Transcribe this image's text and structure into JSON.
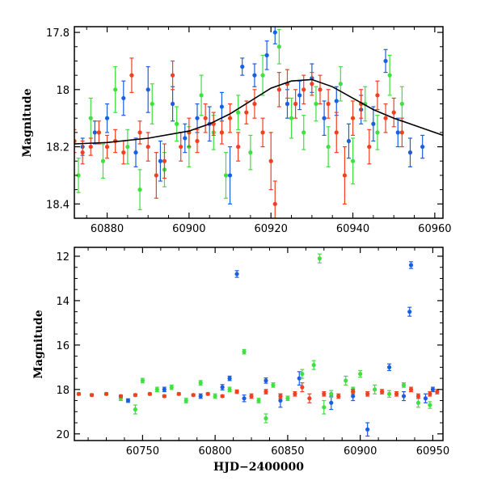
{
  "chart_data": [
    {
      "type": "scatter",
      "panel": "top",
      "title": "",
      "xlabel": "",
      "ylabel": "Magnitude",
      "xlim": [
        60872,
        60962
      ],
      "ylim": [
        18.45,
        17.78
      ],
      "y_inverted": true,
      "x_ticks": [
        60880,
        60900,
        60920,
        60940,
        60960
      ],
      "x_tick_labels": [
        "60880",
        "60900",
        "60920",
        "60940",
        "60960"
      ],
      "y_ticks": [
        17.8,
        18,
        18.2,
        18.4
      ],
      "y_tick_labels": [
        "17.8",
        "18",
        "18.2",
        "18.4"
      ],
      "model_curve": {
        "name": "model",
        "color": "#000000",
        "x": [
          60872,
          60880,
          60890,
          60900,
          60905,
          60910,
          60915,
          60920,
          60925,
          60930,
          60935,
          60940,
          60945,
          60950,
          60955,
          60960,
          60962
        ],
        "y": [
          18.19,
          18.185,
          18.17,
          18.145,
          18.12,
          18.085,
          18.04,
          17.995,
          17.97,
          17.965,
          17.99,
          18.03,
          18.07,
          18.1,
          18.125,
          18.15,
          18.16
        ]
      },
      "series": [
        {
          "name": "blue",
          "color": "#1a5fe0",
          "points": [
            [
              60874,
              18.2,
              0.03
            ],
            [
              60877,
              18.15,
              0.04
            ],
            [
              60880,
              18.1,
              0.05
            ],
            [
              60884,
              18.03,
              0.06
            ],
            [
              60887,
              18.22,
              0.05
            ],
            [
              60890,
              18.0,
              0.08
            ],
            [
              60893,
              18.25,
              0.07
            ],
            [
              60896,
              18.05,
              0.06
            ],
            [
              60899,
              18.17,
              0.05
            ],
            [
              60902,
              18.1,
              0.05
            ],
            [
              60905,
              18.12,
              0.06
            ],
            [
              60908,
              18.06,
              0.05
            ],
            [
              60910,
              18.3,
              0.1
            ],
            [
              60913,
              17.92,
              0.03
            ],
            [
              60916,
              17.95,
              0.04
            ],
            [
              60919,
              17.88,
              0.05
            ],
            [
              60921,
              17.8,
              0.04
            ],
            [
              60924,
              18.05,
              0.05
            ],
            [
              60927,
              18.02,
              0.05
            ],
            [
              60930,
              17.96,
              0.05
            ],
            [
              60933,
              18.1,
              0.06
            ],
            [
              60936,
              18.04,
              0.05
            ],
            [
              60939,
              18.18,
              0.06
            ],
            [
              60942,
              18.07,
              0.05
            ],
            [
              60945,
              18.12,
              0.06
            ],
            [
              60948,
              17.9,
              0.04
            ],
            [
              60951,
              18.15,
              0.05
            ],
            [
              60954,
              18.22,
              0.05
            ],
            [
              60957,
              18.2,
              0.04
            ]
          ]
        },
        {
          "name": "green",
          "color": "#3fe03f",
          "points": [
            [
              60873,
              18.3,
              0.06
            ],
            [
              60876,
              18.1,
              0.07
            ],
            [
              60879,
              18.25,
              0.06
            ],
            [
              60882,
              18.0,
              0.08
            ],
            [
              60885,
              18.2,
              0.06
            ],
            [
              60888,
              18.35,
              0.07
            ],
            [
              60891,
              18.05,
              0.07
            ],
            [
              60894,
              18.28,
              0.06
            ],
            [
              60897,
              18.12,
              0.06
            ],
            [
              60900,
              18.2,
              0.07
            ],
            [
              60903,
              18.02,
              0.07
            ],
            [
              60906,
              18.15,
              0.06
            ],
            [
              60909,
              18.3,
              0.08
            ],
            [
              60912,
              18.08,
              0.06
            ],
            [
              60915,
              18.22,
              0.06
            ],
            [
              60918,
              17.95,
              0.07
            ],
            [
              60922,
              17.85,
              0.06
            ],
            [
              60925,
              18.1,
              0.07
            ],
            [
              60928,
              18.15,
              0.06
            ],
            [
              60931,
              18.05,
              0.06
            ],
            [
              60934,
              18.2,
              0.07
            ],
            [
              60937,
              17.98,
              0.06
            ],
            [
              60940,
              18.25,
              0.08
            ],
            [
              60943,
              18.05,
              0.06
            ],
            [
              60946,
              18.15,
              0.06
            ],
            [
              60949,
              17.95,
              0.07
            ],
            [
              60952,
              18.05,
              0.06
            ]
          ]
        },
        {
          "name": "red",
          "color": "#f04020",
          "points": [
            [
              60872,
              18.18,
              0.04
            ],
            [
              60874,
              18.22,
              0.04
            ],
            [
              60876,
              18.2,
              0.03
            ],
            [
              60878,
              18.15,
              0.04
            ],
            [
              60880,
              18.2,
              0.04
            ],
            [
              60882,
              18.18,
              0.04
            ],
            [
              60884,
              18.22,
              0.04
            ],
            [
              60886,
              17.95,
              0.06
            ],
            [
              60888,
              18.15,
              0.04
            ],
            [
              60890,
              18.2,
              0.05
            ],
            [
              60892,
              18.3,
              0.08
            ],
            [
              60894,
              18.25,
              0.06
            ],
            [
              60896,
              17.95,
              0.05
            ],
            [
              60898,
              18.2,
              0.05
            ],
            [
              60900,
              18.15,
              0.05
            ],
            [
              60902,
              18.18,
              0.04
            ],
            [
              60904,
              18.1,
              0.05
            ],
            [
              60906,
              18.12,
              0.04
            ],
            [
              60908,
              18.15,
              0.04
            ],
            [
              60910,
              18.1,
              0.05
            ],
            [
              60912,
              18.2,
              0.05
            ],
            [
              60914,
              18.08,
              0.04
            ],
            [
              60916,
              18.05,
              0.05
            ],
            [
              60918,
              18.15,
              0.05
            ],
            [
              60920,
              18.25,
              0.1
            ],
            [
              60921,
              18.4,
              0.08
            ],
            [
              60922,
              18.0,
              0.06
            ],
            [
              60924,
              17.98,
              0.05
            ],
            [
              60926,
              18.05,
              0.05
            ],
            [
              60928,
              18.0,
              0.05
            ],
            [
              60930,
              17.98,
              0.04
            ],
            [
              60932,
              18.0,
              0.05
            ],
            [
              60934,
              18.05,
              0.05
            ],
            [
              60936,
              18.15,
              0.07
            ],
            [
              60938,
              18.3,
              0.1
            ],
            [
              60940,
              18.1,
              0.06
            ],
            [
              60942,
              18.05,
              0.05
            ],
            [
              60944,
              18.2,
              0.06
            ],
            [
              60946,
              18.02,
              0.05
            ],
            [
              60948,
              18.1,
              0.05
            ],
            [
              60950,
              18.08,
              0.05
            ],
            [
              60952,
              18.15,
              0.05
            ]
          ]
        }
      ]
    },
    {
      "type": "scatter",
      "panel": "bottom",
      "title": "",
      "xlabel": "HJD−2400000",
      "ylabel": "Magnitude",
      "xlim": [
        60703,
        60957
      ],
      "ylim": [
        20.3,
        11.6
      ],
      "y_inverted": true,
      "x_ticks": [
        60750,
        60800,
        60850,
        60900,
        60950
      ],
      "x_tick_labels": [
        "60750",
        "60800",
        "60850",
        "60900",
        "60950"
      ],
      "y_ticks": [
        12,
        14,
        16,
        18,
        20
      ],
      "y_tick_labels": [
        "12",
        "14",
        "16",
        "18",
        "20"
      ],
      "series": [
        {
          "name": "blue",
          "color": "#1a5fe0",
          "points": [
            [
              60740,
              18.5,
              0.08
            ],
            [
              60765,
              18.0,
              0.1
            ],
            [
              60790,
              18.3,
              0.1
            ],
            [
              60805,
              17.9,
              0.12
            ],
            [
              60810,
              17.5,
              0.1
            ],
            [
              60815,
              12.8,
              0.15
            ],
            [
              60820,
              18.4,
              0.15
            ],
            [
              60835,
              17.6,
              0.12
            ],
            [
              60845,
              18.5,
              0.3
            ],
            [
              60858,
              17.5,
              0.3
            ],
            [
              60880,
              18.6,
              0.3
            ],
            [
              60895,
              18.3,
              0.2
            ],
            [
              60905,
              19.8,
              0.3
            ],
            [
              60920,
              17.0,
              0.15
            ],
            [
              60930,
              18.3,
              0.2
            ],
            [
              60934,
              14.5,
              0.2
            ],
            [
              60935,
              12.4,
              0.15
            ],
            [
              60945,
              18.4,
              0.2
            ],
            [
              60950,
              18.0,
              0.1
            ]
          ]
        },
        {
          "name": "green",
          "color": "#3fe03f",
          "points": [
            [
              60735,
              18.4,
              0.1
            ],
            [
              60745,
              18.9,
              0.2
            ],
            [
              60750,
              17.6,
              0.1
            ],
            [
              60760,
              18.0,
              0.1
            ],
            [
              60770,
              17.9,
              0.1
            ],
            [
              60780,
              18.5,
              0.1
            ],
            [
              60790,
              17.7,
              0.1
            ],
            [
              60800,
              18.3,
              0.1
            ],
            [
              60810,
              18.0,
              0.1
            ],
            [
              60820,
              16.3,
              0.1
            ],
            [
              60830,
              18.5,
              0.1
            ],
            [
              60835,
              19.3,
              0.2
            ],
            [
              60840,
              17.8,
              0.1
            ],
            [
              60850,
              18.4,
              0.1
            ],
            [
              60860,
              17.3,
              0.2
            ],
            [
              60868,
              16.9,
              0.2
            ],
            [
              60872,
              12.1,
              0.2
            ],
            [
              60875,
              18.8,
              0.3
            ],
            [
              60880,
              18.2,
              0.15
            ],
            [
              60890,
              17.6,
              0.2
            ],
            [
              60895,
              18.0,
              0.1
            ],
            [
              60900,
              17.3,
              0.15
            ],
            [
              60910,
              18.0,
              0.2
            ],
            [
              60920,
              18.2,
              0.15
            ],
            [
              60930,
              17.8,
              0.1
            ],
            [
              60940,
              18.6,
              0.2
            ],
            [
              60948,
              18.7,
              0.15
            ]
          ]
        },
        {
          "name": "red",
          "color": "#f04020",
          "points": [
            [
              60706,
              18.2,
              0.05
            ],
            [
              60715,
              18.25,
              0.05
            ],
            [
              60725,
              18.2,
              0.05
            ],
            [
              60735,
              18.3,
              0.05
            ],
            [
              60745,
              18.25,
              0.05
            ],
            [
              60755,
              18.2,
              0.05
            ],
            [
              60765,
              18.3,
              0.05
            ],
            [
              60775,
              18.2,
              0.05
            ],
            [
              60785,
              18.25,
              0.05
            ],
            [
              60795,
              18.2,
              0.05
            ],
            [
              60805,
              18.3,
              0.05
            ],
            [
              60815,
              18.1,
              0.08
            ],
            [
              60825,
              18.3,
              0.1
            ],
            [
              60835,
              18.1,
              0.1
            ],
            [
              60845,
              18.3,
              0.1
            ],
            [
              60855,
              18.2,
              0.1
            ],
            [
              60860,
              17.9,
              0.2
            ],
            [
              60865,
              18.4,
              0.2
            ],
            [
              60875,
              18.2,
              0.1
            ],
            [
              60885,
              18.3,
              0.1
            ],
            [
              60895,
              18.1,
              0.1
            ],
            [
              60905,
              18.2,
              0.1
            ],
            [
              60915,
              18.1,
              0.1
            ],
            [
              60925,
              18.2,
              0.1
            ],
            [
              60935,
              18.0,
              0.1
            ],
            [
              60940,
              18.3,
              0.1
            ],
            [
              60948,
              18.2,
              0.1
            ],
            [
              60953,
              18.1,
              0.1
            ]
          ]
        }
      ]
    }
  ]
}
